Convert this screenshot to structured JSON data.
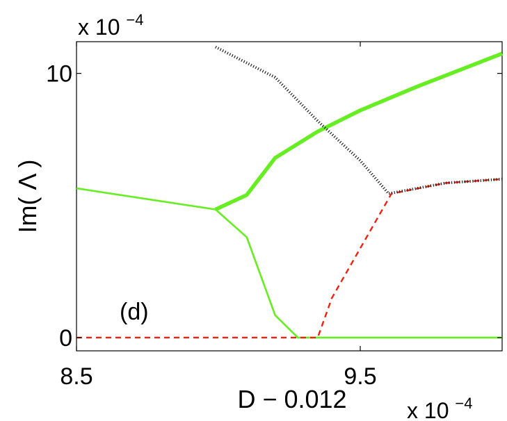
{
  "chart_data": {
    "type": "line",
    "title": "",
    "xlabel": "D − 0.012",
    "ylabel": "Im( Λ )",
    "x_multiplier": {
      "base": "x 10",
      "exponent": "−4"
    },
    "y_multiplier": {
      "base": "x 10",
      "exponent": "−4"
    },
    "xlim": [
      8.5,
      10.0
    ],
    "ylim": [
      -0.5,
      11.2
    ],
    "xticks": [
      {
        "value": 8.5,
        "label": "8.5"
      },
      {
        "value": 9.5,
        "label": "9.5"
      }
    ],
    "yticks": [
      {
        "value": 0,
        "label": "0"
      },
      {
        "value": 10,
        "label": "10"
      }
    ],
    "grid": false,
    "annotation": {
      "text": "(d)",
      "x": 8.75,
      "y": 1.0
    },
    "series": [
      {
        "style": "thin-solid",
        "color": "#66ee22",
        "x": [
          8.5,
          8.99
        ],
        "y": [
          5.65,
          4.85
        ]
      },
      {
        "style": "thick-solid",
        "color": "#66ee22",
        "x": [
          8.99,
          9.1,
          9.2,
          9.35,
          9.5,
          9.7,
          10.0
        ],
        "y": [
          4.85,
          5.4,
          6.8,
          7.8,
          8.6,
          9.5,
          10.75
        ]
      },
      {
        "style": "thin-solid",
        "color": "#66ee22",
        "x": [
          8.99,
          9.1,
          9.2,
          9.28,
          10.0
        ],
        "y": [
          4.85,
          3.8,
          0.85,
          0.0,
          0.0
        ]
      },
      {
        "style": "dashed",
        "color": "#ee2211",
        "x": [
          8.5,
          9.35,
          9.4,
          9.61,
          9.8,
          10.0
        ],
        "y": [
          0.0,
          0.0,
          1.5,
          5.45,
          5.85,
          6.0
        ]
      },
      {
        "style": "dotted",
        "color": "#222222",
        "x": [
          8.99,
          9.2,
          9.35,
          9.5,
          9.6,
          9.8,
          10.0
        ],
        "y": [
          11.0,
          9.85,
          8.2,
          6.7,
          5.45,
          5.85,
          6.0
        ]
      }
    ]
  }
}
